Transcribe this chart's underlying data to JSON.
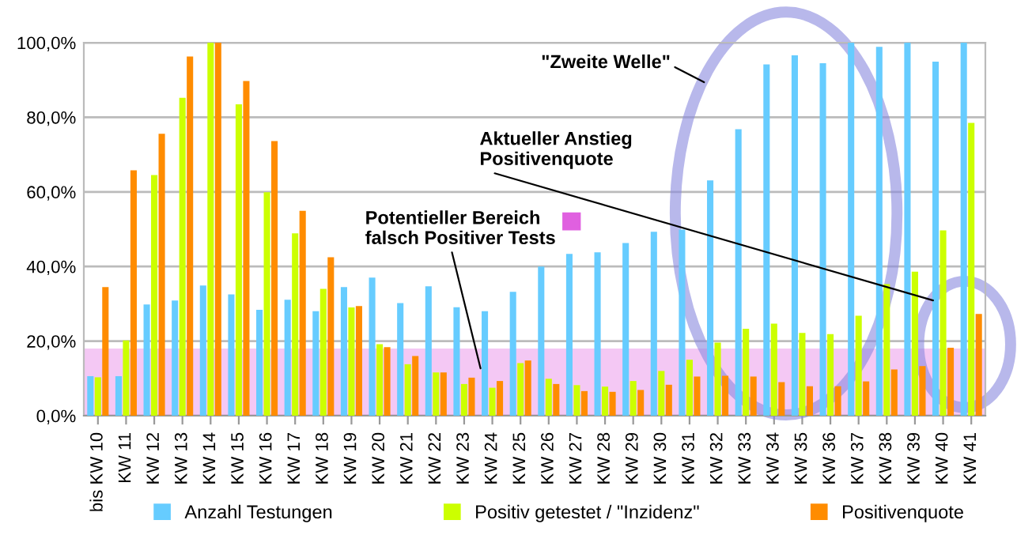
{
  "chart_data": {
    "type": "bar",
    "categories": [
      "bis KW 10",
      "KW 11",
      "KW 12",
      "KW 13",
      "KW 14",
      "KW 15",
      "KW 16",
      "KW 17",
      "KW 18",
      "KW 19",
      "KW 20",
      "KW 21",
      "KW 22",
      "KW 23",
      "KW 24",
      "KW 25",
      "KW 26",
      "KW 27",
      "KW 28",
      "KW 29",
      "KW 30",
      "KW 31",
      "KW 32",
      "KW 33",
      "KW 34",
      "KW 35",
      "KW 36",
      "KW 37",
      "KW 38",
      "KW 39",
      "KW 40",
      "KW 41"
    ],
    "series": [
      {
        "name": "Anzahl Testungen",
        "color": "#66ccff",
        "values": [
          10.6,
          10.6,
          29.8,
          30.9,
          34.9,
          32.5,
          28.4,
          31.1,
          28.0,
          34.5,
          37.0,
          30.2,
          34.7,
          29.1,
          28.0,
          33.2,
          40.0,
          43.4,
          43.8,
          46.3,
          49.3,
          49.9,
          63.1,
          76.8,
          94.2,
          96.6,
          94.5,
          100,
          98.9,
          100,
          94.9,
          100
        ]
      },
      {
        "name": "Positiv getestet / \"Inzidenz\"",
        "color": "#ccff00",
        "values": [
          10.3,
          20.2,
          64.5,
          85.2,
          100,
          83.5,
          59.9,
          48.9,
          34.0,
          29.0,
          19.2,
          13.8,
          11.6,
          8.5,
          7.5,
          14.1,
          9.9,
          8.2,
          7.8,
          9.3,
          12.0,
          15.0,
          19.6,
          23.3,
          24.7,
          22.2,
          21.9,
          26.8,
          35.3,
          38.6,
          49.7,
          78.5
        ]
      },
      {
        "name": "Positivenquote",
        "color": "#ff8c00",
        "values": [
          34.5,
          65.8,
          75.6,
          96.3,
          100,
          89.7,
          73.6,
          54.9,
          42.5,
          29.4,
          18.4,
          16.0,
          11.6,
          10.2,
          9.3,
          14.8,
          8.5,
          6.6,
          6.4,
          6.9,
          8.3,
          10.5,
          10.7,
          10.5,
          9.0,
          7.9,
          7.9,
          9.2,
          12.4,
          13.3,
          18.2,
          27.3
        ]
      }
    ],
    "ylim": [
      0,
      100
    ],
    "yticks": [
      {
        "value": 0,
        "label": "0,0%"
      },
      {
        "value": 20,
        "label": "20,0%"
      },
      {
        "value": 40,
        "label": "40,0%"
      },
      {
        "value": 60,
        "label": "60,0%"
      },
      {
        "value": 80,
        "label": "80,0%"
      },
      {
        "value": 100,
        "label": "100,0%"
      }
    ],
    "grid": "y",
    "legend": "bottom",
    "bands": [
      {
        "axis": "y",
        "from": 0,
        "to": 18,
        "label": "Potentieller Bereich\nfalsch Positiver Tests",
        "color": "#e060e0"
      }
    ],
    "annotations": [
      "\"Zweite Welle\"",
      "Aktueller Anstieg\nPositivenquote"
    ]
  }
}
